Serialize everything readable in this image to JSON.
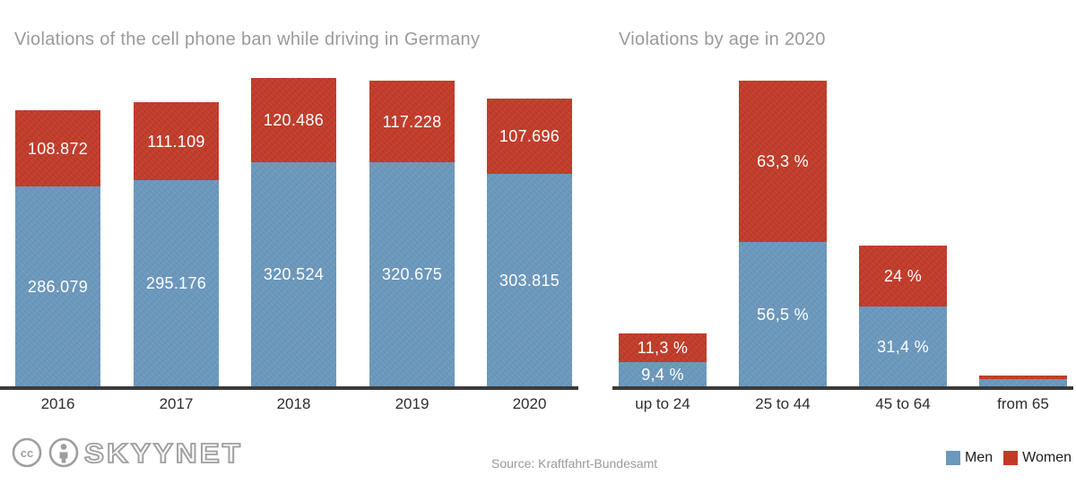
{
  "chart_data": [
    {
      "type": "bar",
      "stacked": true,
      "title": "Violations of the cell phone ban while driving in Germany",
      "categories": [
        "2016",
        "2017",
        "2018",
        "2019",
        "2020"
      ],
      "series": [
        {
          "name": "Men",
          "color": "#6b98bd",
          "values": [
            286079,
            295176,
            320524,
            320675,
            303815
          ],
          "labels": [
            "286.079",
            "295.176",
            "320.524",
            "320.675",
            "303.815"
          ]
        },
        {
          "name": "Women",
          "color": "#c23a28",
          "values": [
            108872,
            111109,
            120486,
            117228,
            107696
          ],
          "labels": [
            "108.872",
            "111.109",
            "120.486",
            "117.228",
            "107.696"
          ]
        }
      ],
      "ylabel": "",
      "xlabel": "",
      "grid": false,
      "legend_position": "bottom-right-shared"
    },
    {
      "type": "bar",
      "stacked": true,
      "title": "Violations by age in 2020",
      "categories": [
        "up to 24",
        "25 to 44",
        "45 to 64",
        "from 65"
      ],
      "unit": "%",
      "series": [
        {
          "name": "Men",
          "color": "#6b98bd",
          "values": [
            9.4,
            56.5,
            31.4,
            2.7
          ],
          "labels": [
            "9,4 %",
            "56,5 %",
            "31,4 %",
            ""
          ]
        },
        {
          "name": "Women",
          "color": "#c23a28",
          "values": [
            11.3,
            63.3,
            24,
            1.4
          ],
          "labels": [
            "11,3 %",
            "63,3 %",
            "24 %",
            ""
          ]
        }
      ],
      "ylabel": "",
      "xlabel": "",
      "grid": false,
      "legend_position": "bottom-right-shared"
    }
  ],
  "footer": {
    "logo_text": "SKYYNET",
    "cc_icon_label": "cc",
    "source": "Source: Kraftfahrt-Bundesamt",
    "legend": [
      {
        "label": "Men",
        "color": "#6b98bd"
      },
      {
        "label": "Women",
        "color": "#c23a28"
      }
    ]
  },
  "colors": {
    "men": "#6b98bd",
    "women": "#c23a28",
    "axis": "#3b3b3b",
    "title": "#9a9a9a",
    "tick": "#2d2d2d"
  }
}
